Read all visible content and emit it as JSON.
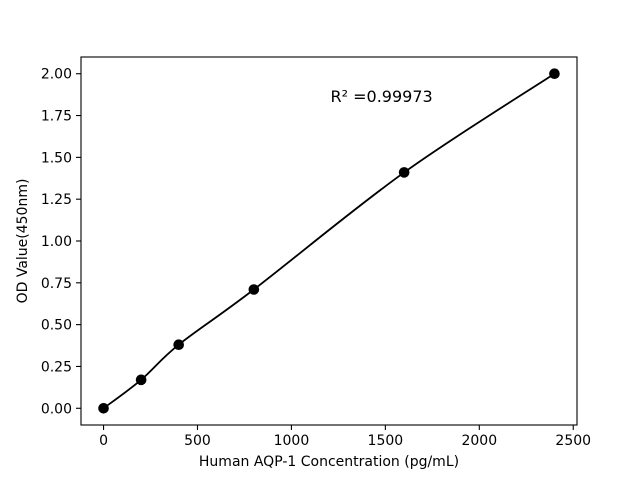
{
  "chart_data": {
    "type": "line",
    "title": "",
    "xlabel": "Human AQP-1 Concentration (pg/mL)",
    "ylabel": "OD Value(450nm)",
    "x": [
      0,
      200,
      400,
      800,
      1600,
      2400
    ],
    "y": [
      0.0,
      0.17,
      0.38,
      0.71,
      1.41,
      2.0
    ],
    "xlim": [
      -120,
      2520
    ],
    "ylim": [
      -0.1,
      2.1
    ],
    "xticks": [
      0,
      500,
      1000,
      1500,
      2000,
      2500
    ],
    "xtick_labels": [
      "0",
      "500",
      "1000",
      "1500",
      "2000",
      "2500"
    ],
    "yticks": [
      0.0,
      0.25,
      0.5,
      0.75,
      1.0,
      1.25,
      1.5,
      1.75,
      2.0
    ],
    "ytick_labels": [
      "0.00",
      "0.25",
      "0.50",
      "0.75",
      "1.00",
      "1.25",
      "1.50",
      "1.75",
      "2.00"
    ],
    "annotation": {
      "text": "R² =0.99973",
      "x": 1480,
      "y": 1.83
    },
    "grid": false,
    "legend": "none",
    "line_color": "#000000",
    "marker": "circle-filled",
    "marker_color": "#000000",
    "background_color": "#ffffff",
    "axis_color": "#000000"
  }
}
